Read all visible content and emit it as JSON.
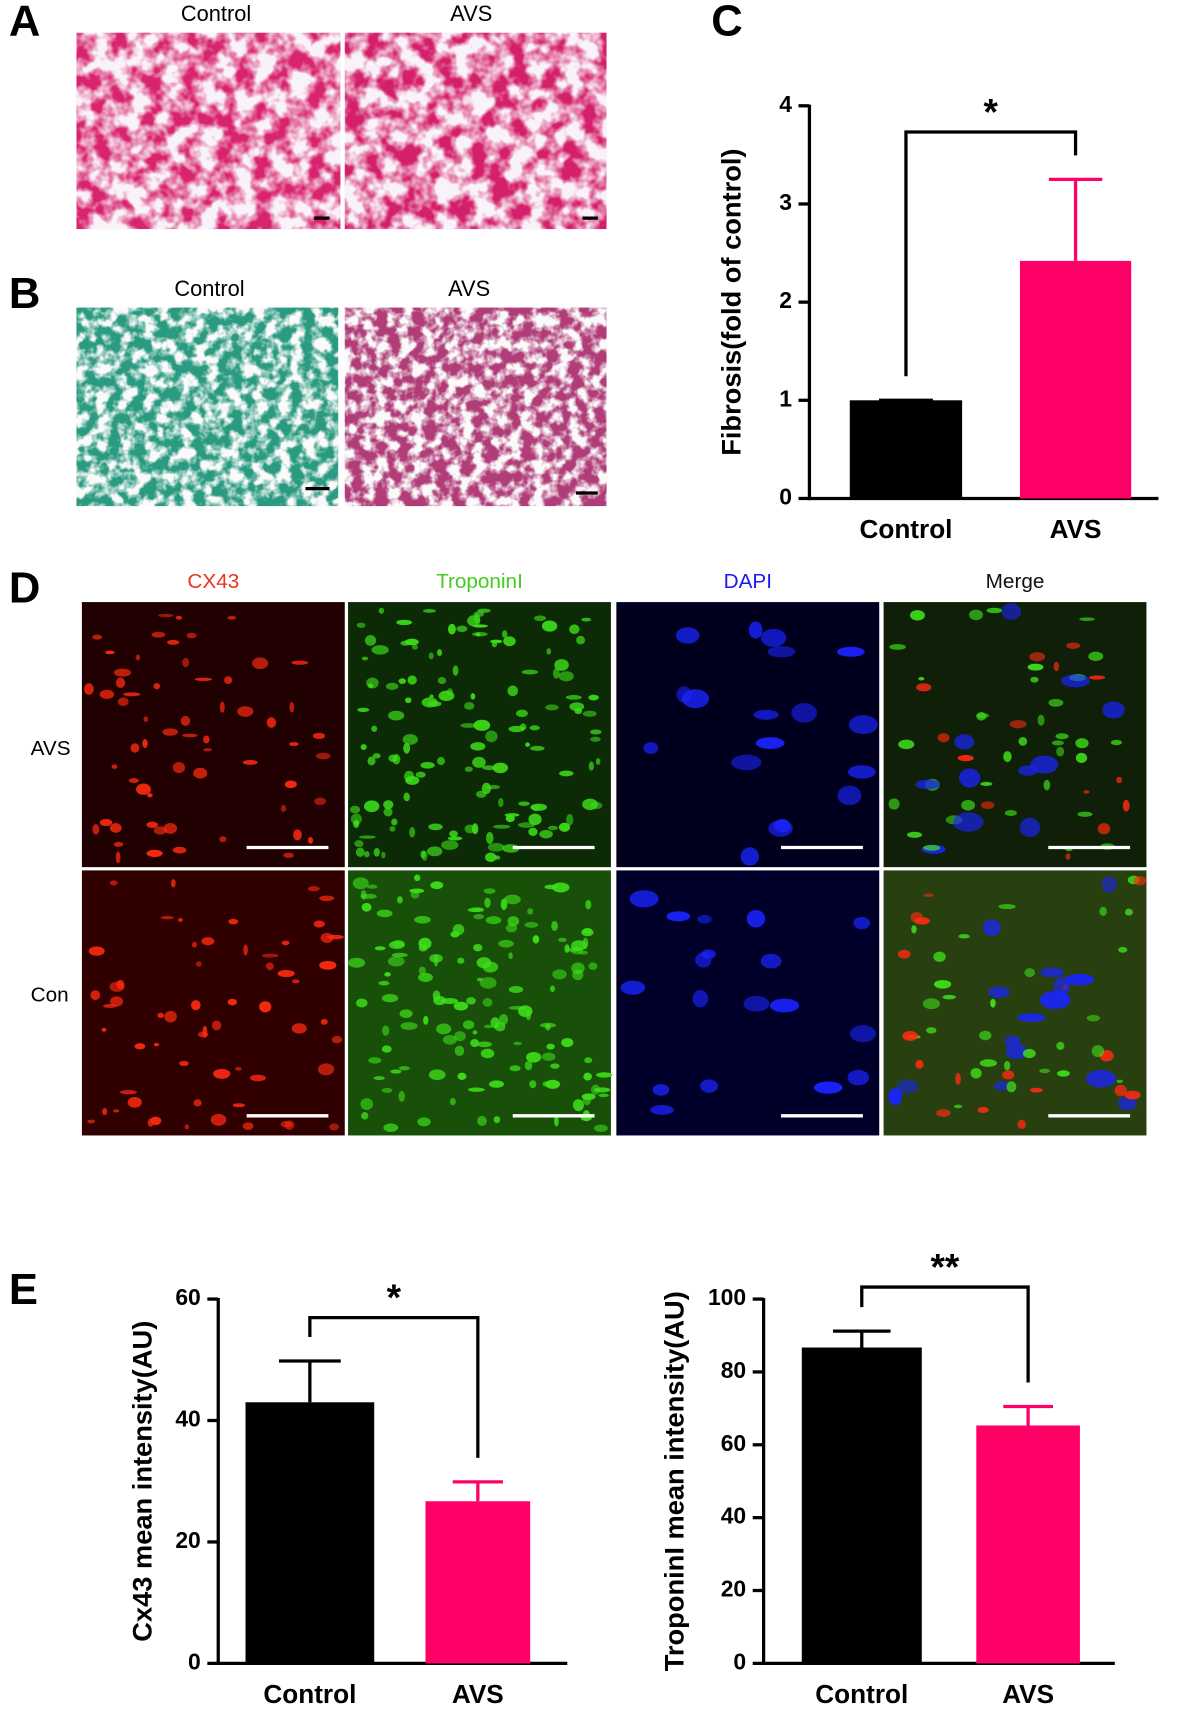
{
  "panels": {
    "A": {
      "letter": "A",
      "labels": [
        "Control",
        "AVS"
      ]
    },
    "B": {
      "letter": "B",
      "labels": [
        "Control",
        "AVS"
      ]
    },
    "C": {
      "letter": "C"
    },
    "D": {
      "letter": "D",
      "columns": [
        "CX43",
        "TroponinI",
        "DAPI",
        "Merge"
      ],
      "rows": [
        "AVS",
        "Con"
      ]
    },
    "E": {
      "letter": "E"
    }
  },
  "chart_data": [
    {
      "type": "bar",
      "y_label": "Fibrosis(fold of control)",
      "categories": [
        "Control",
        "AVS"
      ],
      "values": [
        1,
        2.42
      ],
      "errors": [
        0,
        0.83
      ],
      "colors": [
        "#000000",
        "#ff0066"
      ],
      "ylim": [
        0,
        4
      ],
      "yticks": [
        0,
        1,
        2,
        3,
        4
      ],
      "annotation": "*"
    },
    {
      "type": "bar",
      "y_label": "Cx43 mean intensity(AU)",
      "categories": [
        "Control",
        "AVS"
      ],
      "values": [
        43,
        26.7
      ],
      "errors": [
        6.8,
        3.2
      ],
      "colors": [
        "#000000",
        "#ff0066"
      ],
      "ylim": [
        0,
        60
      ],
      "yticks": [
        0,
        20,
        40,
        60
      ],
      "annotation": "*"
    },
    {
      "type": "bar",
      "y_label": "TroponinI mean intensity(AU)",
      "categories": [
        "Control",
        "AVS"
      ],
      "values": [
        86.7,
        65.3
      ],
      "errors": [
        4.5,
        5.2
      ],
      "colors": [
        "#000000",
        "#ff0066"
      ],
      "ylim": [
        0,
        100
      ],
      "yticks": [
        0,
        20,
        40,
        60,
        80,
        100
      ],
      "annotation": "**"
    }
  ]
}
